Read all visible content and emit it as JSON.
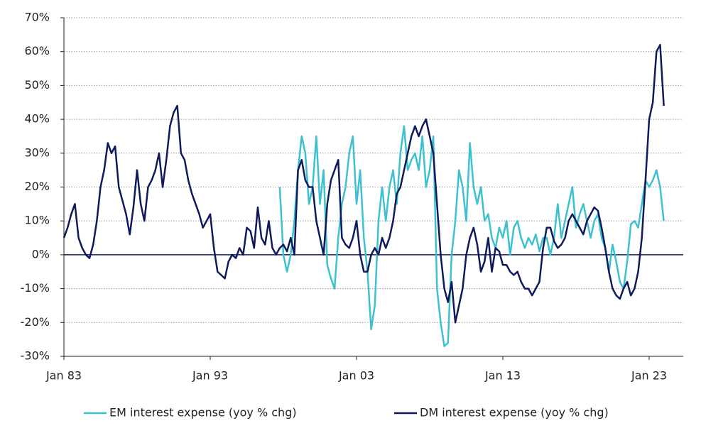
{
  "chart_data": {
    "type": "line",
    "x": [
      "Jan 83",
      "Apr 83",
      "Jul 83",
      "Oct 83",
      "Jan 84",
      "Apr 84",
      "Jul 84",
      "Oct 84",
      "Jan 85",
      "Apr 85",
      "Jul 85",
      "Oct 85",
      "Jan 86",
      "Apr 86",
      "Jul 86",
      "Oct 86",
      "Jan 87",
      "Apr 87",
      "Jul 87",
      "Oct 87",
      "Jan 88",
      "Apr 88",
      "Jul 88",
      "Oct 88",
      "Jan 89",
      "Apr 89",
      "Jul 89",
      "Oct 89",
      "Jan 90",
      "Apr 90",
      "Jul 90",
      "Oct 90",
      "Jan 91",
      "Apr 91",
      "Jul 91",
      "Oct 91",
      "Jan 92",
      "Apr 92",
      "Jul 92",
      "Oct 92",
      "Jan 93",
      "Apr 93",
      "Jul 93",
      "Oct 93",
      "Jan 94",
      "Apr 94",
      "Jul 94",
      "Oct 94",
      "Jan 95",
      "Apr 95",
      "Jul 95",
      "Oct 95",
      "Jan 96",
      "Apr 96",
      "Jul 96",
      "Oct 96",
      "Jan 97",
      "Apr 97",
      "Jul 97",
      "Oct 97",
      "Jan 98",
      "Apr 98",
      "Jul 98",
      "Oct 98",
      "Jan 99",
      "Apr 99",
      "Jul 99",
      "Oct 99",
      "Jan 00",
      "Apr 00",
      "Jul 00",
      "Oct 00",
      "Jan 01",
      "Apr 01",
      "Jul 01",
      "Oct 01",
      "Jan 02",
      "Apr 02",
      "Jul 02",
      "Oct 02",
      "Jan 03",
      "Apr 03",
      "Jul 03",
      "Oct 03",
      "Jan 04",
      "Apr 04",
      "Jul 04",
      "Oct 04",
      "Jan 05",
      "Apr 05",
      "Jul 05",
      "Oct 05",
      "Jan 06",
      "Apr 06",
      "Jul 06",
      "Oct 06",
      "Jan 07",
      "Apr 07",
      "Jul 07",
      "Oct 07",
      "Jan 08",
      "Apr 08",
      "Jul 08",
      "Oct 08",
      "Jan 09",
      "Apr 09",
      "Jul 09",
      "Oct 09",
      "Jan 10",
      "Apr 10",
      "Jul 10",
      "Oct 10",
      "Jan 11",
      "Apr 11",
      "Jul 11",
      "Oct 11",
      "Jan 12",
      "Apr 12",
      "Jul 12",
      "Oct 12",
      "Jan 13",
      "Apr 13",
      "Jul 13",
      "Oct 13",
      "Jan 14",
      "Apr 14",
      "Jul 14",
      "Oct 14",
      "Jan 15",
      "Apr 15",
      "Jul 15",
      "Oct 15",
      "Jan 16",
      "Apr 16",
      "Jul 16",
      "Oct 16",
      "Jan 17",
      "Apr 17",
      "Jul 17",
      "Oct 17",
      "Jan 18",
      "Apr 18",
      "Jul 18",
      "Oct 18",
      "Jan 19",
      "Apr 19",
      "Jul 19",
      "Oct 19",
      "Jan 20",
      "Apr 20",
      "Jul 20",
      "Oct 20",
      "Jan 21",
      "Apr 21",
      "Jul 21",
      "Oct 21",
      "Jan 22",
      "Apr 22",
      "Jul 22",
      "Oct 22",
      "Jan 23",
      "Apr 23",
      "Jul 23",
      "Oct 23",
      "Jan 24"
    ],
    "series": [
      {
        "name": "EM interest expense (yoy % chg)",
        "color": "#3ec1cf",
        "values": [
          null,
          null,
          null,
          null,
          null,
          null,
          null,
          null,
          null,
          null,
          null,
          null,
          null,
          null,
          null,
          null,
          null,
          null,
          null,
          null,
          null,
          null,
          null,
          null,
          null,
          null,
          null,
          null,
          null,
          null,
          null,
          null,
          null,
          null,
          null,
          null,
          null,
          null,
          null,
          null,
          null,
          null,
          null,
          null,
          null,
          null,
          null,
          null,
          null,
          null,
          null,
          null,
          null,
          null,
          null,
          null,
          null,
          null,
          null,
          20,
          0,
          -5,
          0,
          10,
          25,
          35,
          30,
          15,
          20,
          35,
          15,
          25,
          -3,
          -7,
          -10,
          5,
          15,
          20,
          30,
          35,
          15,
          25,
          5,
          -5,
          -22,
          -15,
          10,
          20,
          10,
          20,
          25,
          15,
          30,
          38,
          25,
          28,
          30,
          25,
          35,
          20,
          25,
          35,
          -10,
          -20,
          -27,
          -26,
          0,
          10,
          25,
          20,
          10,
          33,
          20,
          15,
          20,
          10,
          12,
          5,
          2,
          8,
          5,
          10,
          0,
          8,
          10,
          5,
          2,
          5,
          3,
          6,
          1,
          5,
          5,
          0,
          5,
          15,
          5,
          10,
          15,
          20,
          8,
          12,
          15,
          10,
          5,
          10,
          12,
          5,
          2,
          -5,
          3,
          -2,
          -8,
          -10,
          -2,
          9,
          10,
          8,
          15,
          22,
          20,
          22,
          25,
          20,
          10
        ]
      },
      {
        "name": "DM interest expense (yoy % chg)",
        "color": "#0f1a5c",
        "values": [
          5,
          8,
          12,
          15,
          5,
          2,
          0,
          -1,
          3,
          10,
          20,
          25,
          33,
          30,
          32,
          20,
          16,
          12,
          6,
          14,
          25,
          15,
          10,
          20,
          22,
          25,
          30,
          20,
          28,
          38,
          42,
          44,
          30,
          28,
          22,
          18,
          15,
          12,
          8,
          10,
          12,
          2,
          -5,
          -6,
          -7,
          -2,
          0,
          -1,
          2,
          0,
          8,
          7,
          2,
          14,
          5,
          3,
          10,
          2,
          0,
          2,
          3,
          1,
          5,
          0,
          25,
          28,
          22,
          20,
          20,
          10,
          5,
          0,
          15,
          22,
          25,
          28,
          5,
          3,
          2,
          5,
          10,
          0,
          -5,
          -5,
          0,
          2,
          0,
          5,
          2,
          5,
          10,
          18,
          20,
          25,
          30,
          35,
          38,
          35,
          38,
          40,
          35,
          30,
          15,
          0,
          -10,
          -14,
          -8,
          -20,
          -15,
          -10,
          0,
          5,
          8,
          3,
          -5,
          -2,
          5,
          -5,
          2,
          1,
          -3,
          -3,
          -5,
          -6,
          -5,
          -8,
          -10,
          -10,
          -12,
          -10,
          -8,
          2,
          8,
          8,
          4,
          2,
          3,
          5,
          10,
          12,
          10,
          8,
          6,
          10,
          12,
          14,
          13,
          8,
          2,
          -5,
          -10,
          -12,
          -13,
          -10,
          -8,
          -12,
          -10,
          -5,
          5,
          22,
          40,
          45,
          60,
          62,
          44
        ]
      }
    ],
    "xticks": [
      "Jan 83",
      "Jan 93",
      "Jan 03",
      "Jan 13",
      "Jan 23"
    ],
    "ylim": [
      -30,
      70
    ],
    "yticks": [
      {
        "value": -30,
        "label": "-30%"
      },
      {
        "value": -20,
        "label": "-20%"
      },
      {
        "value": -10,
        "label": "-10%"
      },
      {
        "value": 0,
        "label": "0%"
      },
      {
        "value": 10,
        "label": "10%"
      },
      {
        "value": 20,
        "label": "20%"
      },
      {
        "value": 30,
        "label": "30%"
      },
      {
        "value": 40,
        "label": "40%"
      },
      {
        "value": 50,
        "label": "50%"
      },
      {
        "value": 60,
        "label": "60%"
      },
      {
        "value": 70,
        "label": "70%"
      }
    ],
    "grid": true,
    "legend": "bottom"
  }
}
